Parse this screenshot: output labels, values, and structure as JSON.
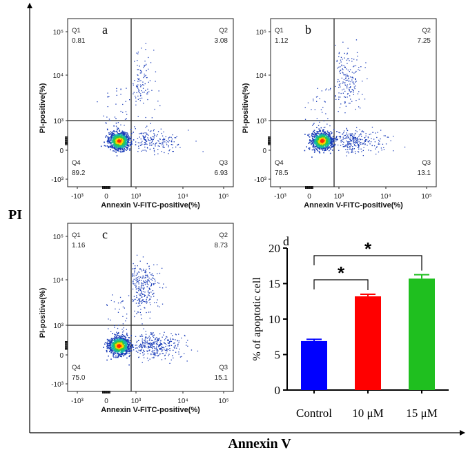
{
  "figure": {
    "y_axis_title": "PI",
    "x_axis_title": "Annexin V"
  },
  "chart_data": [
    {
      "type": "scatter",
      "panel": "a",
      "xlabel": "Annexin V-FITC-positive(%)",
      "ylabel": "PI-positive(%)",
      "x_ticks": [
        "-10³",
        "0",
        "10³",
        "10⁴",
        "10⁵"
      ],
      "y_ticks": [
        "10⁵",
        "10⁴",
        "10³",
        "0",
        "-10³"
      ],
      "quadrants": [
        {
          "name": "Q1",
          "value": "0.81"
        },
        {
          "name": "Q2",
          "value": "3.08"
        },
        {
          "name": "Q3",
          "value": "6.93"
        },
        {
          "name": "Q4",
          "value": "89.2"
        }
      ]
    },
    {
      "type": "scatter",
      "panel": "b",
      "xlabel": "Annexin V-FITC-positive(%)",
      "ylabel": "PI-positive(%)",
      "x_ticks": [
        "-10³",
        "0",
        "10³",
        "10⁴",
        "10⁵"
      ],
      "y_ticks": [
        "10⁵",
        "10⁴",
        "10³",
        "0",
        "-10³"
      ],
      "quadrants": [
        {
          "name": "Q1",
          "value": "1.12"
        },
        {
          "name": "Q2",
          "value": "7.25"
        },
        {
          "name": "Q3",
          "value": "13.1"
        },
        {
          "name": "Q4",
          "value": "78.5"
        }
      ]
    },
    {
      "type": "scatter",
      "panel": "c",
      "xlabel": "Annexin V-FITC-positive(%)",
      "ylabel": "PI-positive(%)",
      "x_ticks": [
        "-10³",
        "0",
        "10³",
        "10⁴",
        "10⁵"
      ],
      "y_ticks": [
        "10⁵",
        "10⁴",
        "10³",
        "0",
        "-10³"
      ],
      "quadrants": [
        {
          "name": "Q1",
          "value": "1.16"
        },
        {
          "name": "Q2",
          "value": "8.73"
        },
        {
          "name": "Q3",
          "value": "15.1"
        },
        {
          "name": "Q4",
          "value": "75.0"
        }
      ]
    },
    {
      "type": "bar",
      "panel": "d",
      "categories": [
        "Control",
        "10 μM",
        "15 μM"
      ],
      "values": [
        6.9,
        13.2,
        15.7
      ],
      "errors": [
        0.25,
        0.3,
        0.55
      ],
      "colors": [
        "#0000ff",
        "#ff0000",
        "#1fbf1f"
      ],
      "ylabel": "% of apoptotic cell",
      "ylim": [
        0,
        20
      ],
      "y_ticks": [
        0,
        5,
        10,
        15,
        20
      ],
      "significance": [
        {
          "from": "Control",
          "to": "10 μM",
          "label": "*"
        },
        {
          "from": "Control",
          "to": "15 μM",
          "label": "*"
        }
      ]
    }
  ]
}
